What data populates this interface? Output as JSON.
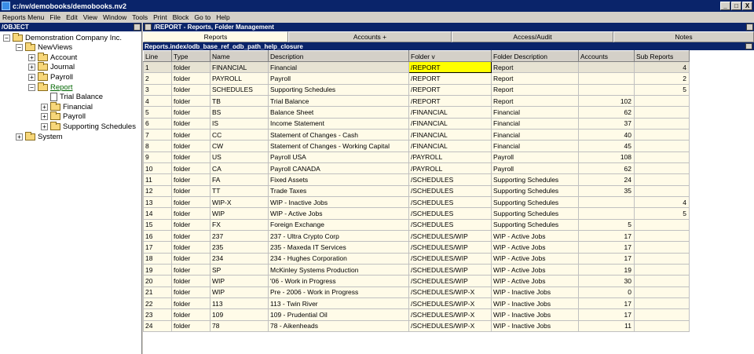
{
  "window": {
    "title": "c:/nv/demobooks/demobooks.nv2",
    "buttons": [
      "_",
      "□",
      "X"
    ]
  },
  "menubar": [
    "Reports Menu",
    "File",
    "Edit",
    "View",
    "Window",
    "Tools",
    "Print",
    "Block",
    "Go to",
    "Help"
  ],
  "left_pane": {
    "header": "/OBJECT",
    "tree": [
      {
        "label": "Demonstration Company Inc.",
        "expander": "−",
        "icon": "folder-icon",
        "indent": 0
      },
      {
        "label": "NewViews",
        "expander": "−",
        "icon": "folder-icon",
        "indent": 1
      },
      {
        "label": "Account",
        "expander": "+",
        "icon": "folder-icon",
        "indent": 2
      },
      {
        "label": "Journal",
        "expander": "+",
        "icon": "folder-icon",
        "indent": 2
      },
      {
        "label": "Payroll",
        "expander": "+",
        "icon": "folder-icon",
        "indent": 2
      },
      {
        "label": "Report",
        "expander": "−",
        "icon": "folder-open-icon",
        "indent": 2,
        "selected": true
      },
      {
        "label": "Trial Balance",
        "expander": "",
        "icon": "document-icon",
        "indent": 3
      },
      {
        "label": "Financial",
        "expander": "+",
        "icon": "folder-icon",
        "indent": 3
      },
      {
        "label": "Payroll",
        "expander": "+",
        "icon": "folder-icon",
        "indent": 3
      },
      {
        "label": "Supporting Schedules",
        "expander": "+",
        "icon": "folder-icon",
        "indent": 3
      },
      {
        "label": "System",
        "expander": "+",
        "icon": "folder-icon",
        "indent": 1
      }
    ]
  },
  "right_pane": {
    "header": "/REPORT - Reports, Folder Management",
    "tabs": [
      {
        "label": "Reports",
        "active": true
      },
      {
        "label": "Accounts    +",
        "active": false
      },
      {
        "label": "Access/Audit",
        "active": false
      },
      {
        "label": "Notes",
        "active": false
      }
    ],
    "path": "Reports.index/odb_base_ref_odb_path_help_closure",
    "columns": [
      "Line",
      "Type",
      "Name",
      "Description",
      "Folder v",
      "Folder Description",
      "Accounts",
      "Sub Reports"
    ],
    "rows": [
      [
        "1",
        "folder",
        "FINANCIAL",
        "Financial",
        "/REPORT",
        "Report",
        "",
        "4"
      ],
      [
        "2",
        "folder",
        "PAYROLL",
        "Payroll",
        "/REPORT",
        "Report",
        "",
        "2"
      ],
      [
        "3",
        "folder",
        "SCHEDULES",
        "Supporting Schedules",
        "/REPORT",
        "Report",
        "",
        "5"
      ],
      [
        "4",
        "folder",
        "TB",
        " Trial Balance",
        "/REPORT",
        "Report",
        "102",
        ""
      ],
      [
        "5",
        "folder",
        "BS",
        "Balance Sheet",
        "/FINANCIAL",
        "Financial",
        "62",
        ""
      ],
      [
        "6",
        "folder",
        "IS",
        "Income Statement",
        "/FINANCIAL",
        "Financial",
        "37",
        ""
      ],
      [
        "7",
        "folder",
        "CC",
        "Statement of Changes - Cash",
        "/FINANCIAL",
        "Financial",
        "40",
        ""
      ],
      [
        "8",
        "folder",
        "CW",
        "Statement of Changes - Working Capital",
        "/FINANCIAL",
        "Financial",
        "45",
        ""
      ],
      [
        "9",
        "folder",
        "US",
        "Payroll USA",
        "/PAYROLL",
        "Payroll",
        "108",
        ""
      ],
      [
        "10",
        "folder",
        "CA",
        "Payroll CANADA",
        "/PAYROLL",
        "Payroll",
        "62",
        ""
      ],
      [
        "11",
        "folder",
        "FA",
        "Fixed Assets",
        "/SCHEDULES",
        "Supporting Schedules",
        "24",
        ""
      ],
      [
        "12",
        "folder",
        "TT",
        "Trade Taxes",
        "/SCHEDULES",
        "Supporting Schedules",
        "35",
        ""
      ],
      [
        "13",
        "folder",
        "WIP-X",
        "WIP - Inactive Jobs",
        "/SCHEDULES",
        "Supporting Schedules",
        "",
        "4"
      ],
      [
        "14",
        "folder",
        "WIP",
        "WIP - Active Jobs",
        "/SCHEDULES",
        "Supporting Schedules",
        "",
        "5"
      ],
      [
        "15",
        "folder",
        "FX",
        "Foreign Exchange",
        "/SCHEDULES",
        "Supporting Schedules",
        "5",
        ""
      ],
      [
        "16",
        "folder",
        "237",
        "237 - Ultra Crypto Corp",
        "/SCHEDULES/WIP",
        "WIP - Active Jobs",
        "17",
        ""
      ],
      [
        "17",
        "folder",
        "235",
        "235 - Maxeda IT Services",
        "/SCHEDULES/WIP",
        "WIP - Active Jobs",
        "17",
        ""
      ],
      [
        "18",
        "folder",
        "234",
        "234 - Hughes Corporation",
        "/SCHEDULES/WIP",
        "WIP - Active Jobs",
        "17",
        ""
      ],
      [
        "19",
        "folder",
        "SP",
        "McKinley Systems Production",
        "/SCHEDULES/WIP",
        "WIP - Active Jobs",
        "19",
        ""
      ],
      [
        "20",
        "folder",
        "WIP",
        "'06 - Work in Progress",
        "/SCHEDULES/WIP",
        "WIP - Active Jobs",
        "30",
        ""
      ],
      [
        "21",
        "folder",
        "WIP",
        "Pre - 2006 - Work in Progress",
        "/SCHEDULES/WIP-X",
        "WIP - Inactive Jobs",
        "0",
        ""
      ],
      [
        "22",
        "folder",
        "113",
        "113 - Twin River",
        "/SCHEDULES/WIP-X",
        "WIP - Inactive Jobs",
        "17",
        ""
      ],
      [
        "23",
        "folder",
        "109",
        "109 - Prudential Oil",
        "/SCHEDULES/WIP-X",
        "WIP - Inactive Jobs",
        "17",
        ""
      ],
      [
        "24",
        "folder",
        "78",
        "78 - Aikenheads",
        "/SCHEDULES/WIP-X",
        "WIP - Inactive Jobs",
        "11",
        ""
      ]
    ],
    "selected_row": 0,
    "highlight_color": "#ffff00"
  }
}
